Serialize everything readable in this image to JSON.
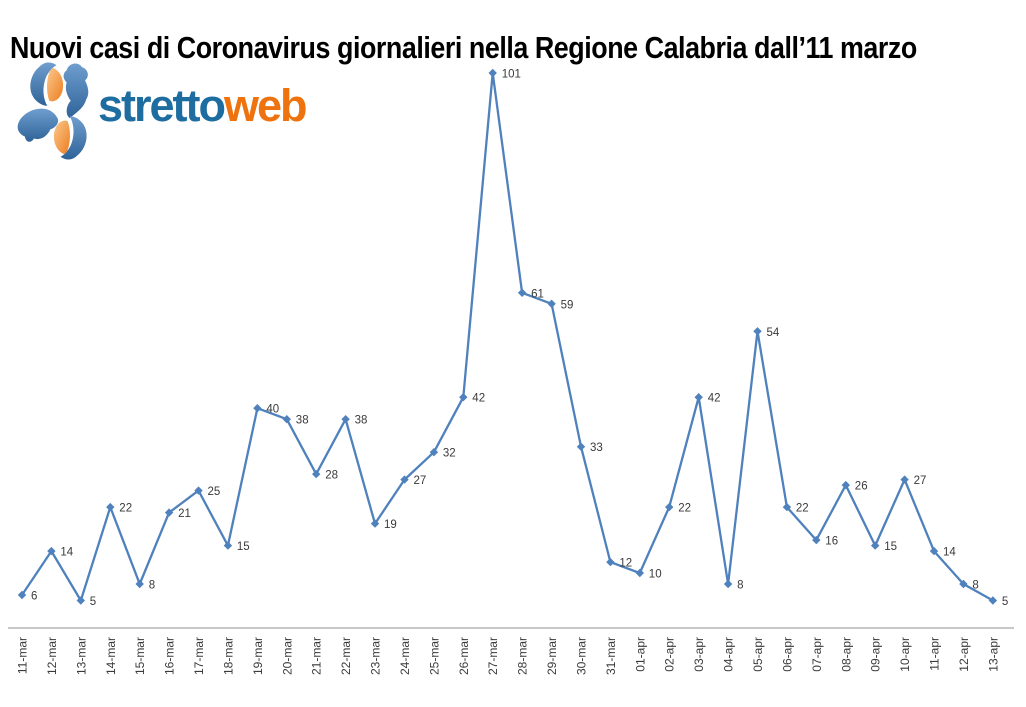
{
  "title": "Nuovi casi di Coronavirus giornalieri nella Regione Calabria dall’11 marzo",
  "logo": {
    "name": "strettoweb",
    "text_primary": "stretto",
    "text_secondary": "web",
    "color_primary": "#1d6da0",
    "color_secondary": "#ee720e"
  },
  "chart_data": {
    "type": "line",
    "title": "Nuovi casi di Coronavirus giornalieri nella Regione Calabria dall’11 marzo",
    "categories": [
      "11-mar",
      "12-mar",
      "13-mar",
      "14-mar",
      "15-mar",
      "16-mar",
      "17-mar",
      "18-mar",
      "19-mar",
      "20-mar",
      "21-mar",
      "22-mar",
      "23-mar",
      "24-mar",
      "25-mar",
      "26-mar",
      "27-mar",
      "28-mar",
      "29-mar",
      "30-mar",
      "31-mar",
      "01-apr",
      "02-apr",
      "03-apr",
      "04-apr",
      "05-apr",
      "06-apr",
      "07-apr",
      "08-apr",
      "09-apr",
      "10-apr",
      "11-apr",
      "12-apr",
      "13-apr"
    ],
    "values": [
      6,
      14,
      5,
      22,
      8,
      21,
      25,
      15,
      40,
      38,
      28,
      38,
      19,
      27,
      32,
      42,
      101,
      61,
      59,
      33,
      12,
      10,
      22,
      42,
      8,
      54,
      22,
      16,
      26,
      15,
      27,
      14,
      8,
      5
    ],
    "series_color": "#4f81bd",
    "marker": "diamond",
    "data_labels": true,
    "label_color": "#3a3a3a",
    "axis_color": "#a6a6a6",
    "xlabel": "",
    "ylabel": "",
    "ylim": [
      0,
      110
    ],
    "grid": false,
    "legend": "none"
  }
}
